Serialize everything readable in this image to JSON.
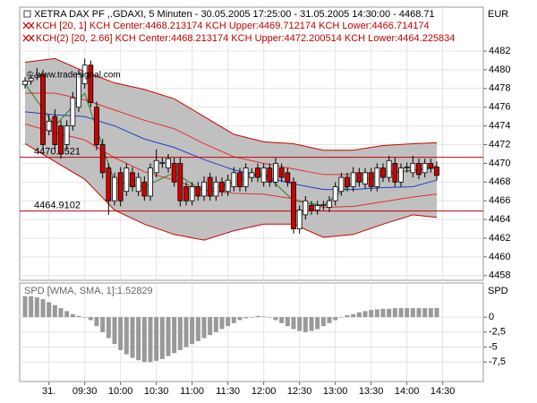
{
  "chart_data": [
    {
      "type": "candlestick",
      "title": "XETRA DAX PF ,.GDAXI, 5 Minuten - 30.05.2005 17:25:00 - 31.05.2005 14:30:00 - 4468.71",
      "annotations": [
        "KCH [20, 1] KCH Center:4468.213174 KCH Upper:4469.712174 KCH Lower:4466.714174",
        "KCH(2) [20, 2.66] KCH Center:4468.213174 KCH Upper:4472.200514 KCH Lower:4464.225834"
      ],
      "watermark": "© www.tradesignal.com",
      "unit": "EUR",
      "up_color": "#ffffff",
      "down_color": "#d00000",
      "outline_color": "#000000",
      "x": [
        0,
        1,
        2,
        3,
        4,
        5,
        6,
        7,
        8,
        9,
        10,
        11,
        12,
        13,
        14,
        15,
        16,
        17,
        18,
        19,
        20,
        21,
        22,
        23,
        24,
        25,
        26,
        27,
        28,
        29,
        30,
        31,
        32,
        33,
        34,
        35,
        36,
        37,
        38,
        39,
        40,
        41,
        42,
        43,
        44,
        45,
        46,
        47,
        48,
        49,
        50,
        51,
        52,
        53,
        54,
        55,
        56,
        57,
        58,
        59,
        60,
        61,
        62,
        63,
        64,
        65,
        66,
        67,
        68,
        69
      ],
      "open": [
        4478.4,
        4478.8,
        4479.2,
        4479.5,
        4473.5,
        4475,
        4474,
        4472,
        4474,
        4476,
        4478.5,
        4480.5,
        4476,
        4472,
        4469.5,
        4466,
        4469,
        4467,
        4469,
        4467,
        4468,
        4466.5,
        4469,
        4470,
        4469.5,
        4470,
        4470,
        4467.5,
        4466,
        4467.5,
        4466.5,
        4468.5,
        4466.5,
        4468,
        4467,
        4467.5,
        4469,
        4467.5,
        4468.5,
        4469.5,
        4468,
        4469.5,
        4468,
        4469.5,
        4469,
        4468,
        4463,
        4464.5,
        4465.5,
        4465,
        4465.5,
        4465.3,
        4466,
        4467,
        4468.5,
        4467.5,
        4469,
        4467.8,
        4469,
        4467.5,
        4469.5,
        4468.5,
        4470,
        4468,
        4469.5,
        4469,
        4470,
        4469,
        4470,
        4469.6
      ],
      "high": [
        4479.2,
        4479.5,
        4480.2,
        4480,
        4475.2,
        4475.8,
        4474.6,
        4474.6,
        4477.6,
        4480,
        4481.2,
        4481,
        4476.6,
        4472.6,
        4470,
        4469,
        4469.6,
        4470,
        4469.6,
        4469,
        4468.6,
        4470,
        4471.5,
        4470.6,
        4471,
        4470.6,
        4470.6,
        4468,
        4468,
        4468,
        4468.6,
        4469,
        4468.6,
        4468.5,
        4468.8,
        4469.6,
        4469.5,
        4470,
        4469.5,
        4470,
        4470,
        4470,
        4470.6,
        4470,
        4469.5,
        4468.5,
        4465.5,
        4466.5,
        4466,
        4466,
        4466,
        4466.5,
        4468,
        4469,
        4469,
        4469.6,
        4469.5,
        4469.5,
        4469.5,
        4470,
        4470,
        4470.8,
        4470.6,
        4470,
        4470.1,
        4470.8,
        4470.5,
        4470.5,
        4470.5,
        4470.2
      ],
      "low": [
        4478,
        4478.4,
        4478.9,
        4471.5,
        4473,
        4471.5,
        4470.5,
        4471.5,
        4473.5,
        4475.5,
        4478,
        4476,
        4471.4,
        4468.4,
        4464.5,
        4465.5,
        4465.4,
        4466.5,
        4467,
        4466.5,
        4466,
        4466,
        4468.5,
        4469.5,
        4469,
        4467.5,
        4465.4,
        4465.5,
        4465.5,
        4466,
        4466,
        4466,
        4466,
        4466.5,
        4466.5,
        4467,
        4467,
        4467,
        4468,
        4468,
        4467.5,
        4467.5,
        4467.5,
        4468,
        4467.5,
        4462.5,
        4462.5,
        4464,
        4464.5,
        4464.5,
        4465,
        4464.8,
        4465.5,
        4466.5,
        4467,
        4467,
        4467.5,
        4467.3,
        4467,
        4467,
        4468,
        4468,
        4467.5,
        4467.5,
        4469,
        4468.5,
        4468.3,
        4468.5,
        4469,
        4468.2
      ],
      "close": [
        4478.8,
        4479.1,
        4479.4,
        4472,
        4474.5,
        4472,
        4471,
        4474,
        4477,
        4479.5,
        4480.5,
        4476.5,
        4472,
        4469,
        4466,
        4468.5,
        4466,
        4469.5,
        4467.5,
        4468.5,
        4466.5,
        4469.5,
        4470.3,
        4470.1,
        4470.5,
        4468,
        4466,
        4466,
        4467.5,
        4466.5,
        4468,
        4466.5,
        4468,
        4467,
        4468.2,
        4469,
        4467.5,
        4469.5,
        4469,
        4468.5,
        4469.5,
        4468,
        4470,
        4468.5,
        4468,
        4463,
        4465,
        4466,
        4465,
        4465.5,
        4465.6,
        4466,
        4467.5,
        4468.5,
        4467.5,
        4469,
        4468,
        4469,
        4467.5,
        4469.5,
        4468.5,
        4470.3,
        4468,
        4469.5,
        4469.6,
        4470,
        4468.8,
        4470,
        4469.5,
        4468.71
      ],
      "lines": [
        {
          "color": "#d00000",
          "x": [
            0,
            5,
            10,
            15,
            20,
            25,
            30,
            35,
            40,
            45,
            50,
            55,
            60,
            65,
            69
          ],
          "values": [
            4480.8,
            4481.2,
            4479.8,
            4478.6,
            4477.9,
            4476.9,
            4475,
            4473.1,
            4472.3,
            4472.1,
            4471.4,
            4471.4,
            4471.9,
            4472.1,
            4472.200514
          ]
        },
        {
          "color": "#d00000",
          "x": [
            0,
            5,
            10,
            15,
            20,
            25,
            30,
            35,
            40,
            45,
            50,
            55,
            60,
            65,
            69
          ],
          "values": [
            4472.1,
            4470.2,
            4468.3,
            4465,
            4463.5,
            4462.4,
            4461.8,
            4462.8,
            4463.5,
            4463.5,
            4462.1,
            4462.4,
            4463.5,
            4464.5,
            4464.225834
          ]
        },
        {
          "color": "#e03030",
          "x": [
            0,
            5,
            10,
            15,
            20,
            25,
            30,
            35,
            40,
            45,
            50,
            55,
            60,
            65,
            69
          ],
          "values": [
            4477.5,
            4477.5,
            4476.8,
            4475.7,
            4474.6,
            4473.7,
            4472.1,
            4470.7,
            4470,
            4469.4,
            4468.8,
            4468.8,
            4469.1,
            4469.2,
            4469.712174
          ]
        },
        {
          "color": "#e03030",
          "x": [
            0,
            5,
            10,
            15,
            20,
            25,
            30,
            35,
            40,
            45,
            50,
            55,
            60,
            65,
            69
          ],
          "values": [
            4474.2,
            4473.3,
            4472.5,
            4470.6,
            4469.1,
            4468.2,
            4467.1,
            4466.8,
            4466.7,
            4466.2,
            4465.3,
            4465.4,
            4465.9,
            4466.4,
            4466.714174
          ]
        },
        {
          "color": "#2040c0",
          "x": [
            0,
            5,
            10,
            15,
            20,
            25,
            30,
            35,
            40,
            45,
            50,
            55,
            60,
            65,
            69
          ],
          "values": [
            4475.5,
            4475.2,
            4475,
            4474,
            4472.6,
            4471.7,
            4470.4,
            4469.3,
            4468.6,
            4467.8,
            4467.2,
            4467.2,
            4467.4,
            4467.5,
            4468.213174
          ]
        },
        {
          "color": "#208020",
          "x": [
            0,
            5,
            10,
            15,
            20,
            25,
            30,
            35,
            40,
            45,
            50,
            55,
            60,
            65,
            69
          ],
          "values": [
            4478.5,
            4474,
            4477.5,
            4468,
            4467.5,
            4469,
            4467,
            4468,
            4469,
            4466,
            4465.5,
            4468,
            4468.8,
            4469.3,
            4469.5
          ]
        }
      ],
      "band_between": [
        0,
        1
      ],
      "band_color": "#c0c0c0",
      "levels": [
        {
          "value": 4470.6521,
          "label": "4470.6521"
        },
        {
          "value": 4464.9102,
          "label": "4464.9102"
        }
      ],
      "level_color": "#c00000",
      "xlim": [
        -0.9,
        76.8
      ],
      "xticks": [
        {
          "value": 4,
          "label": "31."
        },
        {
          "value": 10,
          "label": "09:30"
        },
        {
          "value": 16,
          "label": "10:00"
        },
        {
          "value": 22,
          "label": "10:30"
        },
        {
          "value": 28,
          "label": "11:00"
        },
        {
          "value": 34,
          "label": "11:30"
        },
        {
          "value": 40,
          "label": "12:00"
        },
        {
          "value": 46,
          "label": "12:30"
        },
        {
          "value": 52,
          "label": "13:00"
        },
        {
          "value": 58,
          "label": "13:30"
        },
        {
          "value": 64,
          "label": "14:00"
        },
        {
          "value": 70,
          "label": "14:30"
        }
      ],
      "ylim": [
        4457.5,
        4483.15
      ],
      "yticks": [
        4458,
        4460,
        4462,
        4464,
        4466,
        4468,
        4470,
        4472,
        4474,
        4476,
        4478,
        4480,
        4482
      ],
      "grid": true
    },
    {
      "type": "bar",
      "title": "SPD [WMA, SMA, 1]:1.52829",
      "y_label": "SPD",
      "color": "#999999",
      "x": [
        0,
        1,
        2,
        3,
        4,
        5,
        6,
        7,
        8,
        9,
        10,
        11,
        12,
        13,
        14,
        15,
        16,
        17,
        18,
        19,
        20,
        21,
        22,
        23,
        24,
        25,
        26,
        27,
        28,
        29,
        30,
        31,
        32,
        33,
        34,
        35,
        36,
        37,
        38,
        39,
        40,
        41,
        42,
        43,
        44,
        45,
        46,
        47,
        48,
        49,
        50,
        51,
        52,
        53,
        54,
        55,
        56,
        57,
        58,
        59,
        60,
        61,
        62,
        63,
        64,
        65,
        66,
        67,
        68,
        69
      ],
      "values": [
        3.5,
        3.5,
        3.3,
        3,
        2.5,
        2,
        1.5,
        1,
        0.5,
        0.2,
        0,
        -0.5,
        -1.5,
        -2.5,
        -3.5,
        -4.5,
        -5.5,
        -6.2,
        -6.8,
        -7.2,
        -7.5,
        -7.5,
        -7.3,
        -7,
        -6.5,
        -6,
        -5.5,
        -5,
        -4.5,
        -4,
        -3.5,
        -3,
        -2.5,
        -2,
        -1.5,
        -1,
        -0.5,
        -0.2,
        0,
        0.2,
        0.1,
        0,
        -0.5,
        -1,
        -1.5,
        -2,
        -2.3,
        -2.5,
        -2.3,
        -2,
        -1.5,
        -1,
        -0.5,
        0,
        0.3,
        0.5,
        0.8,
        1,
        1.2,
        1.3,
        1.4,
        1.4,
        1.5,
        1.5,
        1.5,
        1.5,
        1.5,
        1.5,
        1.5,
        1.52829
      ],
      "xlim": [
        -0.9,
        76.8
      ],
      "ylim": [
        -10.6,
        5.4
      ],
      "yticks": [
        0,
        {
          "value": -2.5,
          "label": "-2,5"
        },
        -5,
        {
          "value": -7.5,
          "label": "-7,5"
        }
      ],
      "grid": true
    }
  ]
}
